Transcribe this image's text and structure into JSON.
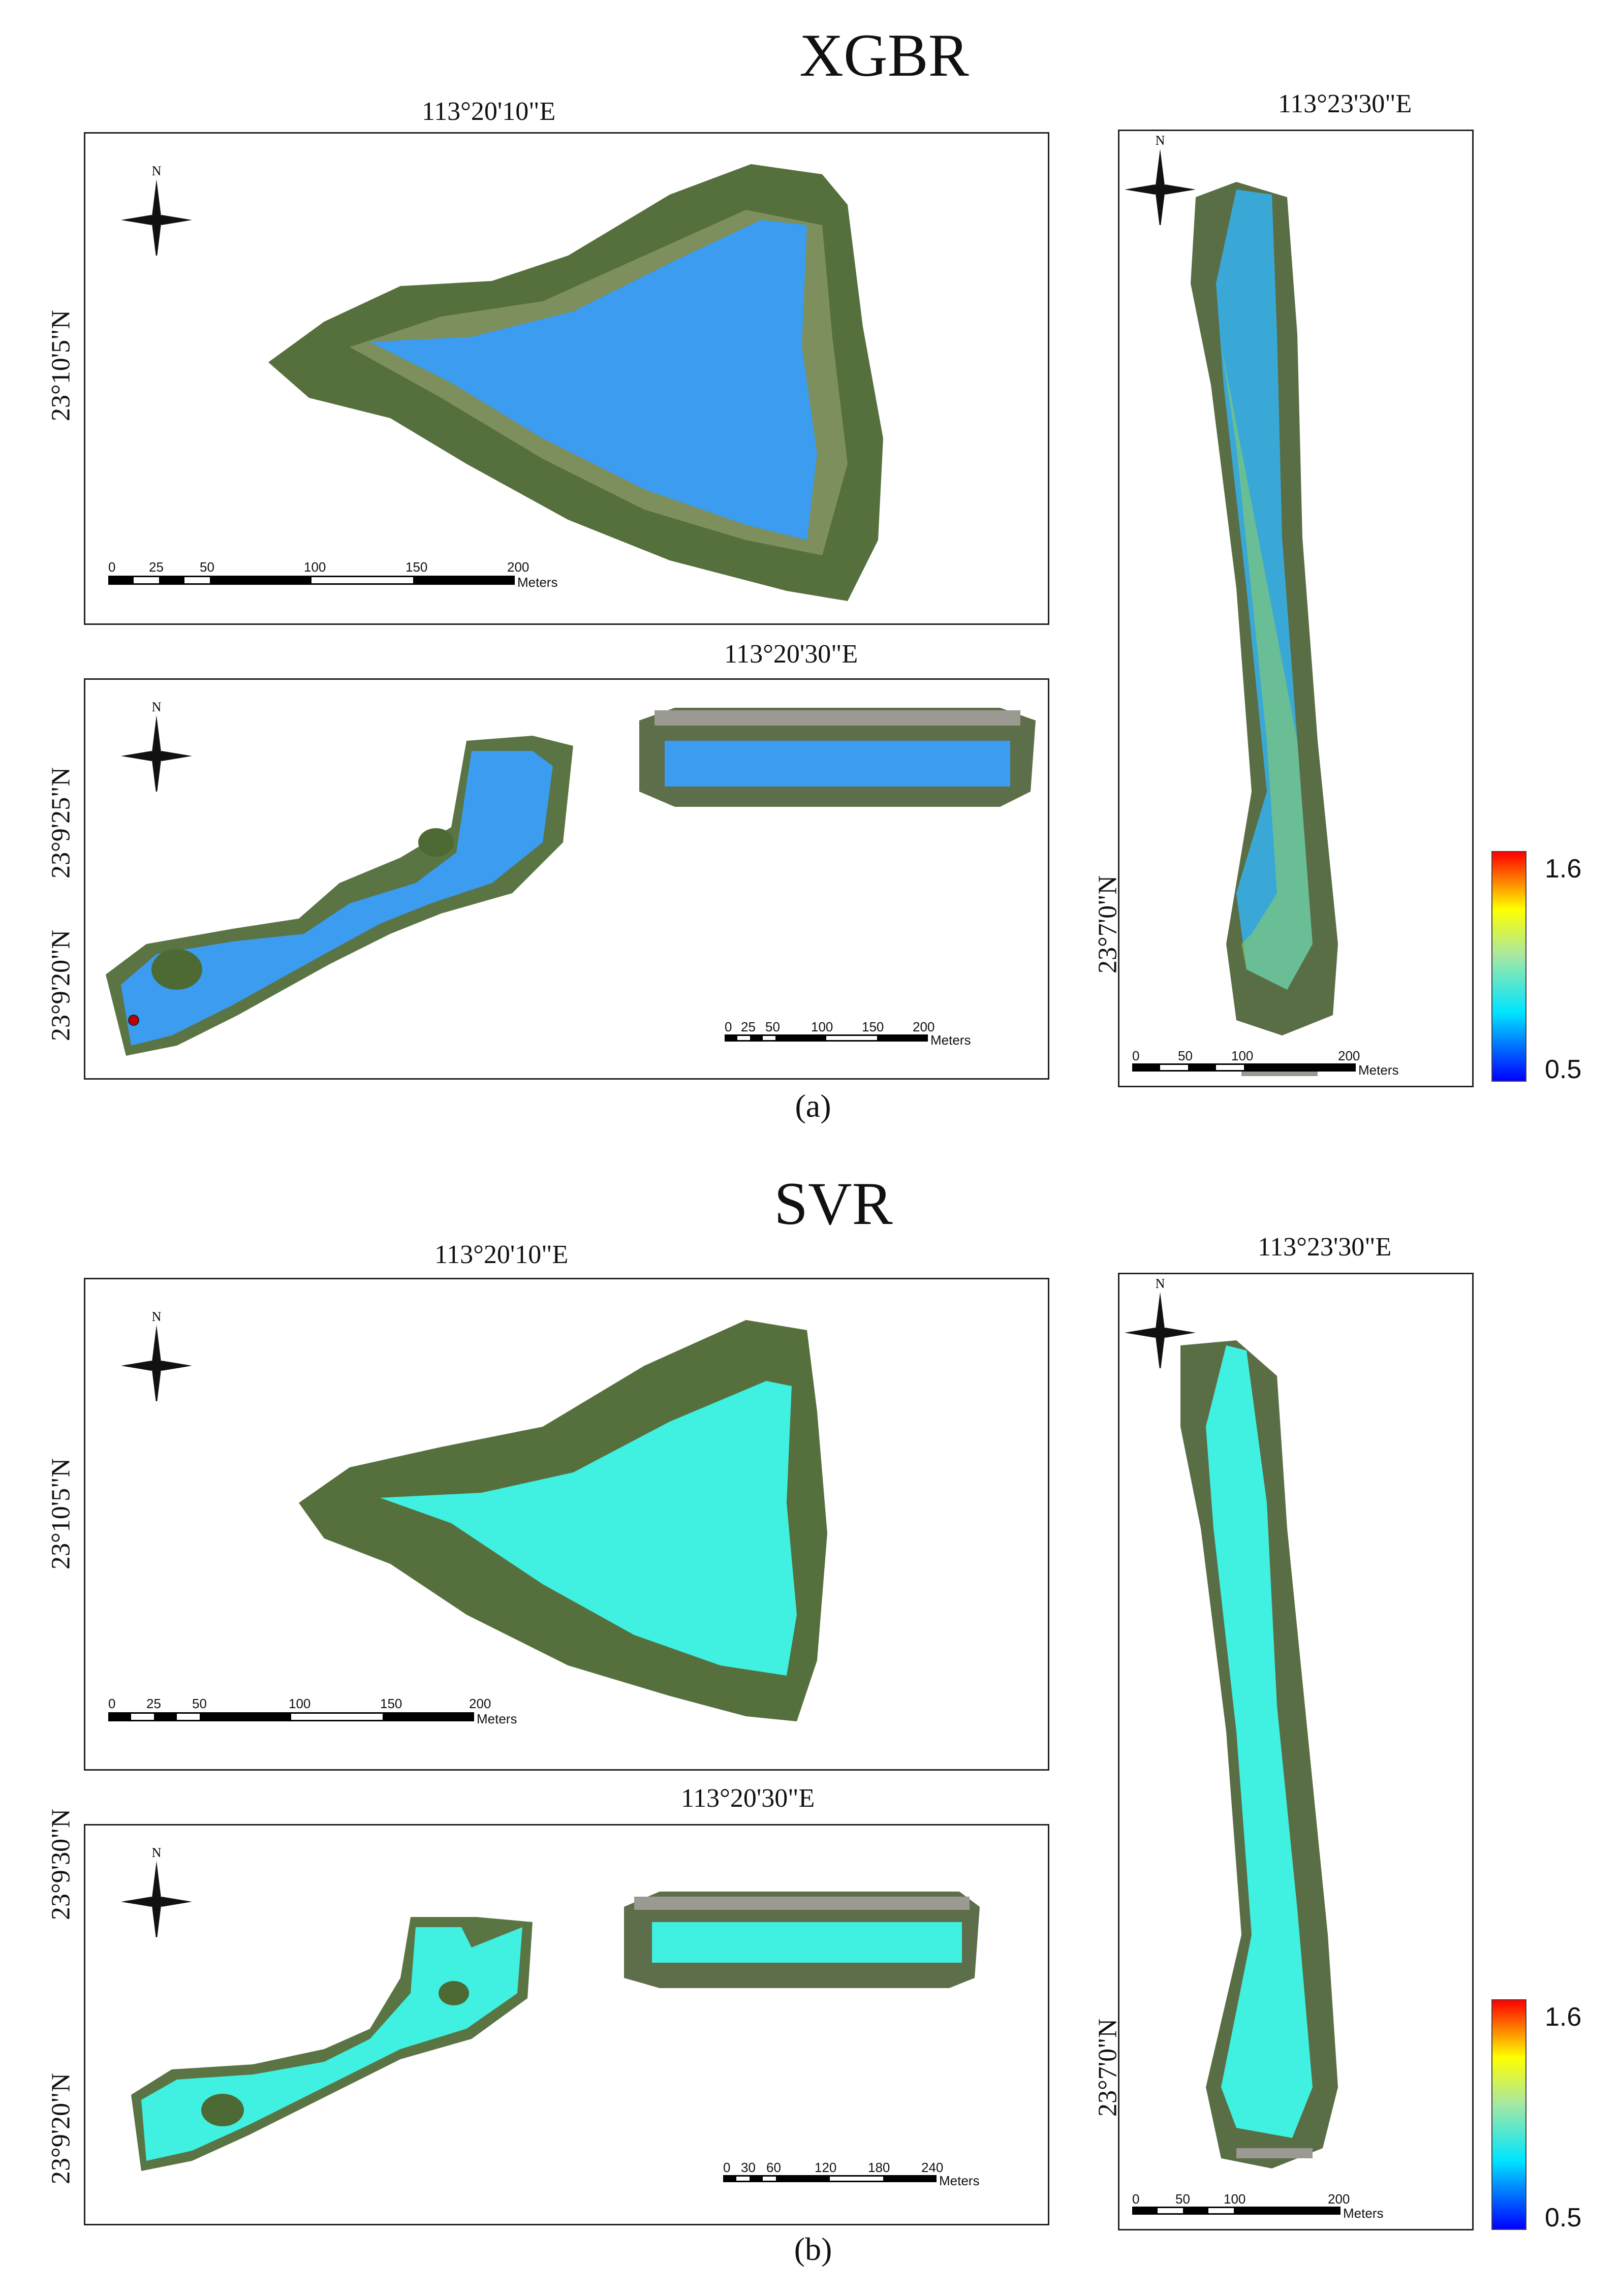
{
  "panels": [
    {
      "id": "a",
      "model_title": "XGBR",
      "caption": "(a)",
      "top_map": {
        "lon_label": "113°20'10\"E",
        "lat_label": "23°10'5\"N",
        "scale_ticks": [
          "0",
          "25",
          "50",
          "100",
          "150",
          "200"
        ],
        "scale_unit": "Meters"
      },
      "bottom_map": {
        "lon_label": "113°20'30\"E",
        "lat_labels": [
          "23°9'25\"N",
          "23°9'20\"N"
        ],
        "scale_ticks": [
          "0",
          "25",
          "50",
          "100",
          "150",
          "200"
        ],
        "scale_unit": "Meters"
      },
      "right_map": {
        "lon_label": "113°23'30\"E",
        "lat_label": "23°7'0\"N",
        "scale_ticks": [
          "0",
          "50",
          "100",
          "200"
        ],
        "scale_unit": "Meters"
      },
      "legend": {
        "max": "1.6",
        "min": "0.5"
      },
      "water_color": "#3b9cf0"
    },
    {
      "id": "b",
      "model_title": "SVR",
      "caption": "(b)",
      "top_map": {
        "lon_label": "113°20'10\"E",
        "lat_label": "23°10'5\"N",
        "scale_ticks": [
          "0",
          "25",
          "50",
          "100",
          "150",
          "200"
        ],
        "scale_unit": "Meters"
      },
      "bottom_map": {
        "lon_label": "113°20'30\"E",
        "lat_labels": [
          "23°9'30\"N",
          "23°9'20\"N"
        ],
        "scale_ticks": [
          "0",
          "30",
          "60",
          "120",
          "180",
          "240"
        ],
        "scale_unit": "Meters"
      },
      "right_map": {
        "lon_label": "113°23'30\"E",
        "lat_label": "23°7'0\"N",
        "scale_ticks": [
          "0",
          "50",
          "100",
          "200"
        ],
        "scale_unit": "Meters"
      },
      "legend": {
        "max": "1.6",
        "min": "0.5"
      },
      "water_color": "#40f0e0"
    }
  ],
  "north_arrow_label": "N",
  "colors": {
    "vegetation": "#4f6b3a",
    "vegetation_light": "#7a8f5a",
    "road": "#9a9a92",
    "gradient": [
      "#0000ff",
      "#00e5ff",
      "#a8e8a0",
      "#ffff00",
      "#ff0000"
    ]
  }
}
